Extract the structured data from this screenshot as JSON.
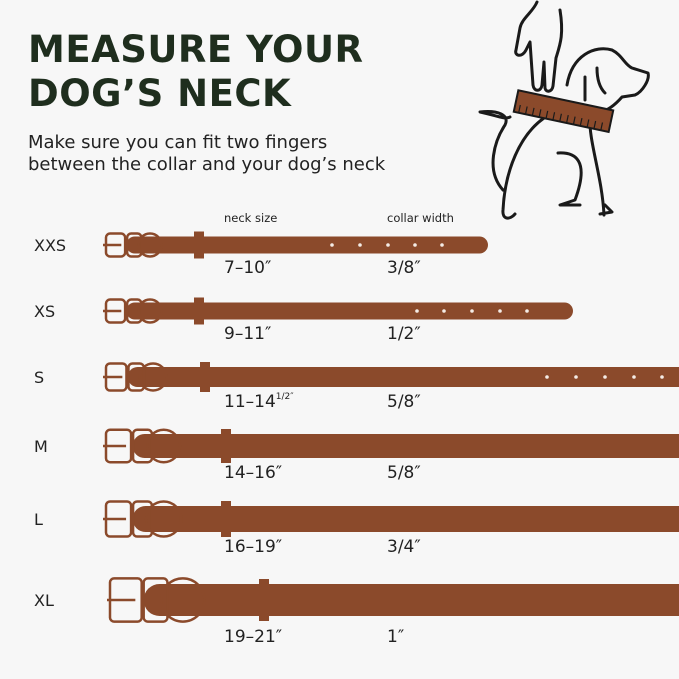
{
  "title_lines": [
    "MEASURE YOUR",
    "DOG’S  NECK"
  ],
  "subtitle_lines": [
    "Make sure you can fit two fingers",
    "between the collar and your dog’s neck"
  ],
  "headers": {
    "neck_size": "neck size",
    "collar_width": "collar width"
  },
  "colors": {
    "collar": "#8b4a2b",
    "title": "#1f2e1e",
    "background": "#f7f7f7",
    "outline": "#1a1a1a"
  },
  "illustration": "hand-measuring-dog-neck-with-ruler-collar-icon",
  "sizes": [
    {
      "label": "XXS",
      "neck": "7–10″",
      "neck_sup": "",
      "width": "3/8″"
    },
    {
      "label": "XS",
      "neck": "9–11″",
      "neck_sup": "",
      "width": "1/2″"
    },
    {
      "label": "S",
      "neck": "11–14",
      "neck_sup": "1/2″",
      "width": "5/8″"
    },
    {
      "label": "M",
      "neck": "14–16″",
      "neck_sup": "",
      "width": "5/8″"
    },
    {
      "label": "L",
      "neck": "16–19″",
      "neck_sup": "",
      "width": "3/4″"
    },
    {
      "label": "XL",
      "neck": "19–21″",
      "neck_sup": "",
      "width": "1″"
    }
  ]
}
